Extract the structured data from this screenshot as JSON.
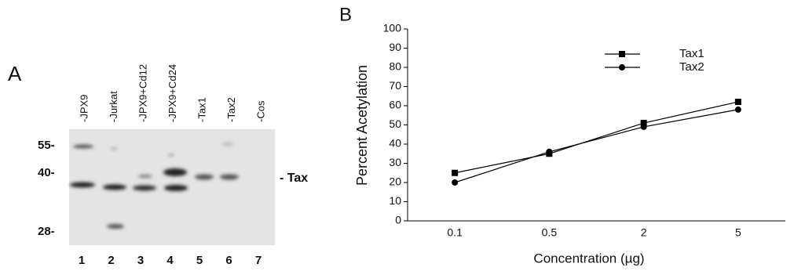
{
  "panel_a": {
    "label": "A",
    "lanes": [
      "-JPX9",
      "-Jurkat",
      "-JPX9+Cd12",
      "-JPX9+Cd24",
      "-Tax1",
      "-Tax2",
      "-Cos"
    ],
    "lane_numbers": [
      "1",
      "2",
      "3",
      "4",
      "5",
      "6",
      "7"
    ],
    "markers": [
      "55-",
      "40-",
      "28-"
    ],
    "band_label": "- Tax"
  },
  "chart_data": {
    "type": "line",
    "panel_label": "B",
    "x_label": "Concentration (µg)",
    "y_label": "Percent  Acetylation",
    "categories": [
      "0.1",
      "0.5",
      "2",
      "5"
    ],
    "series": [
      {
        "name": "Tax1",
        "color": "#000000",
        "marker": "square",
        "values": [
          25,
          35,
          51,
          62
        ]
      },
      {
        "name": "Tax2",
        "color": "#000000",
        "marker": "circle",
        "values": [
          20,
          36,
          49,
          58
        ]
      }
    ],
    "ylim": [
      0,
      100
    ],
    "yticks": [
      0,
      10,
      20,
      30,
      40,
      50,
      60,
      70,
      80,
      90,
      100
    ]
  }
}
